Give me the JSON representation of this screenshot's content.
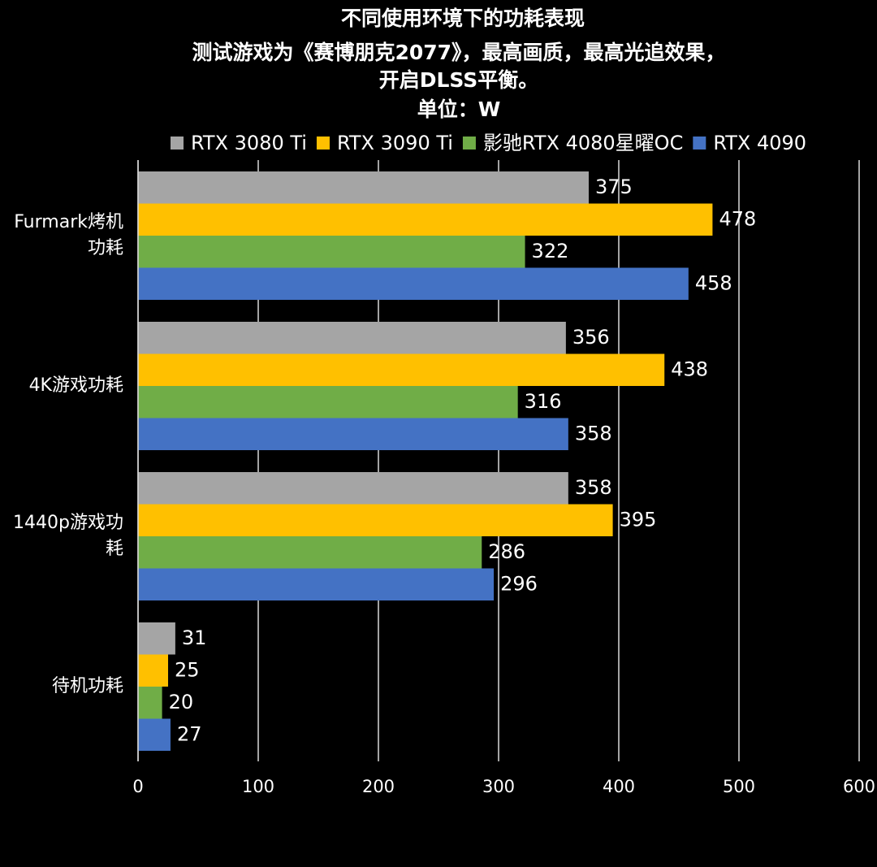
{
  "chart_data": {
    "type": "barh",
    "title": "不同使用环境下的功耗表现",
    "subtitle": [
      "测试游戏为《赛博朋克2077》，最高画质，最高光追效果，",
      "开启DLSS平衡。"
    ],
    "unit_label": "单位：W",
    "categories": [
      [
        "Furmark烤机",
        "功耗"
      ],
      [
        "4K游戏功耗"
      ],
      [
        "1440p游戏功",
        "耗"
      ],
      [
        "待机功耗"
      ]
    ],
    "series": [
      {
        "name": "RTX 3080 Ti",
        "color": "#a5a5a5",
        "values": [
          375,
          356,
          358,
          31
        ]
      },
      {
        "name": "RTX 3090 Ti",
        "color": "#ffc000",
        "values": [
          478,
          438,
          395,
          25
        ]
      },
      {
        "name": "影驰RTX 4080星曜OC",
        "color": "#70ad47",
        "values": [
          322,
          316,
          286,
          20
        ]
      },
      {
        "name": "RTX 4090",
        "color": "#4472c4",
        "values": [
          458,
          358,
          296,
          27
        ]
      }
    ],
    "xlim": [
      0,
      600
    ],
    "xticks": [
      0,
      100,
      200,
      300,
      400,
      500,
      600
    ],
    "grid": true,
    "legend": "top"
  }
}
